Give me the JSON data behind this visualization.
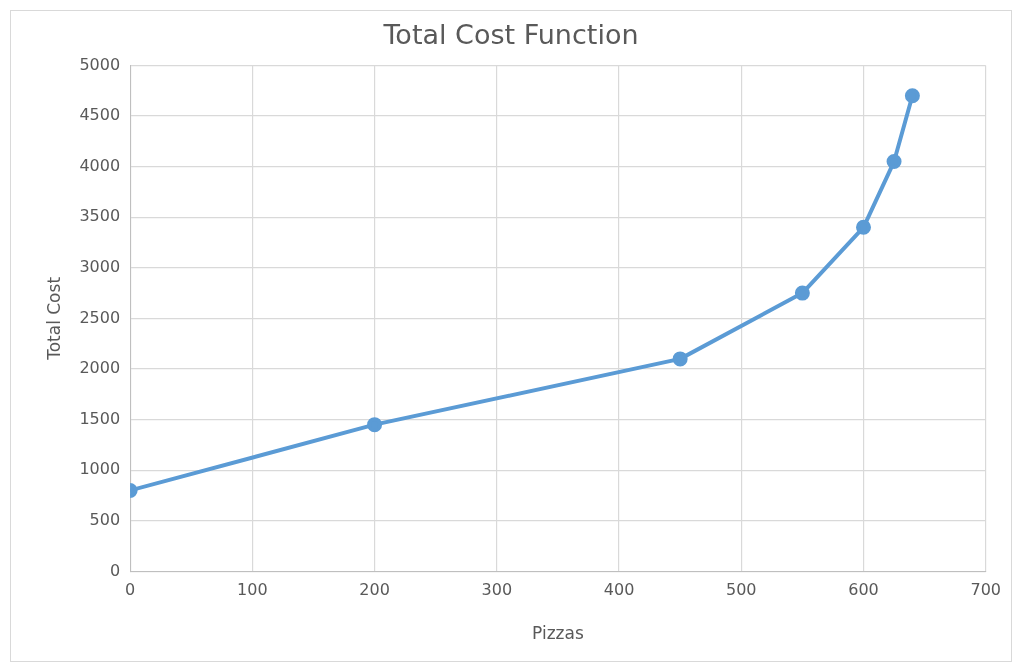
{
  "chart_data": {
    "type": "line",
    "title": "Total Cost Function",
    "xlabel": "Pizzas",
    "ylabel": "Total Cost",
    "x": [
      0,
      200,
      450,
      550,
      600,
      625,
      640
    ],
    "series": [
      {
        "color": "#5b9bd5",
        "values": [
          800,
          1450,
          2100,
          2750,
          3400,
          4050,
          4700
        ]
      }
    ],
    "xlim": [
      0,
      700
    ],
    "xticks": [
      0,
      100,
      200,
      300,
      400,
      500,
      600,
      700
    ],
    "ylim": [
      0,
      5000
    ],
    "yticks": [
      0,
      500,
      1000,
      1500,
      2000,
      2500,
      3000,
      3500,
      4000,
      4500,
      5000
    ],
    "grid": true,
    "legend": false,
    "marker": "circle",
    "line_style": "solid"
  }
}
